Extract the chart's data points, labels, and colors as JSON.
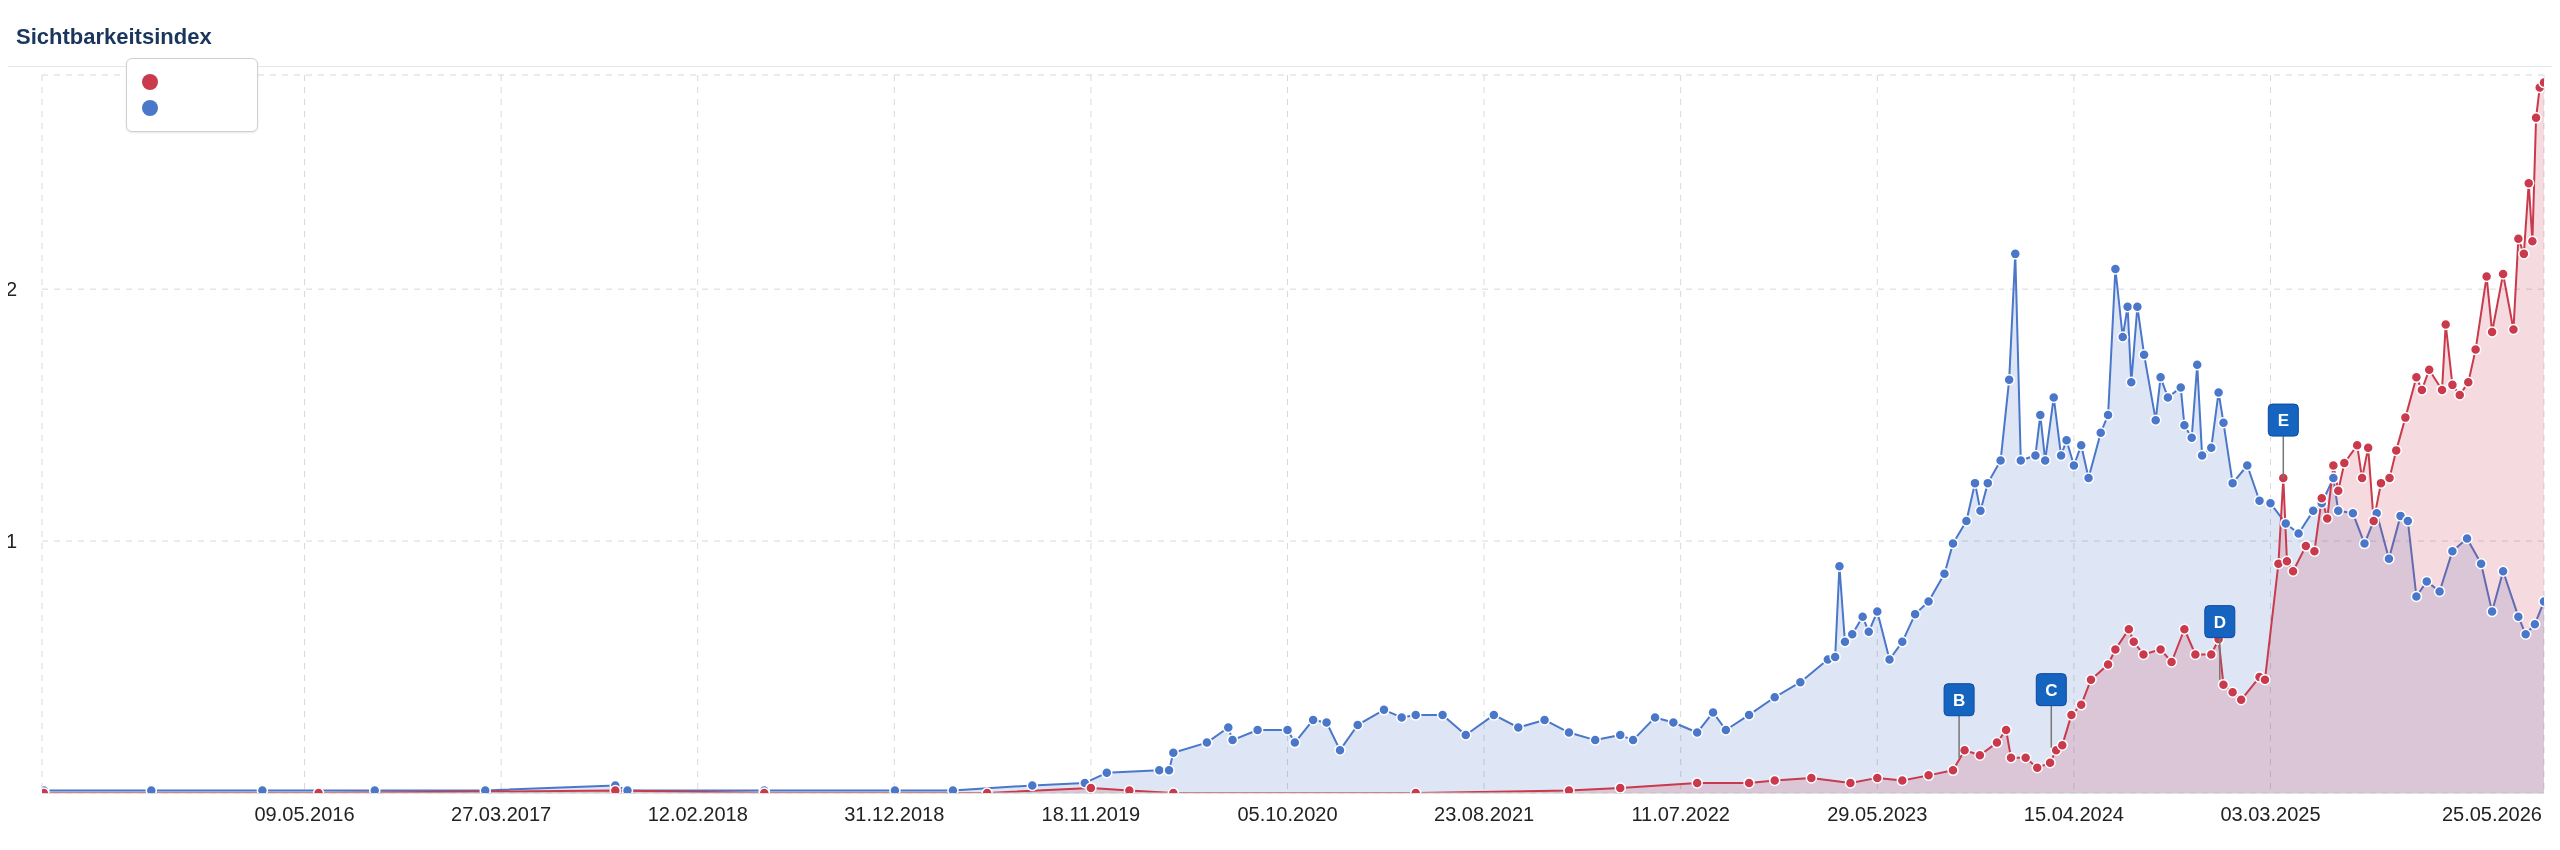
{
  "chart_data": {
    "type": "area",
    "title": "Sichtbarkeitsindex",
    "xlim": [
      "2015-03-06",
      "2026-05-25"
    ],
    "xticks": [
      {
        "value": "2016-05-09",
        "label": "09.05.2016"
      },
      {
        "value": "2017-03-27",
        "label": "27.03.2017"
      },
      {
        "value": "2018-02-12",
        "label": "12.02.2018"
      },
      {
        "value": "2018-12-31",
        "label": "31.12.2018"
      },
      {
        "value": "2019-11-18",
        "label": "18.11.2019"
      },
      {
        "value": "2020-10-05",
        "label": "05.10.2020"
      },
      {
        "value": "2021-08-23",
        "label": "23.08.2021"
      },
      {
        "value": "2022-07-11",
        "label": "11.07.2022"
      },
      {
        "value": "2023-05-29",
        "label": "29.05.2023"
      },
      {
        "value": "2024-04-15",
        "label": "15.04.2024"
      },
      {
        "value": "2025-03-03",
        "label": "03.03.2025"
      },
      {
        "value": "2026-05-25",
        "label": "25.05.2026"
      }
    ],
    "ylim": [
      0,
      2.85
    ],
    "yticks": [
      1,
      2
    ],
    "grid": true,
    "marker": "circle",
    "line_style": "solid",
    "series": [
      {
        "color": "#c93a4d",
        "x": [
          "2015-03-09",
          "2016-06-01",
          "2017-09-30",
          "2018-06-01",
          "2019-06-01",
          "2019-11-18",
          "2020-01-20",
          "2020-04-01",
          "2021-05-03",
          "2022-01-09",
          "2022-04-03",
          "2022-08-07",
          "2022-10-31",
          "2022-12-12",
          "2023-02-10",
          "2023-04-15",
          "2023-05-29",
          "2023-07-09",
          "2023-08-21",
          "2023-09-30",
          "2023-10-19",
          "2023-11-13",
          "2023-12-11",
          "2023-12-26",
          "2024-01-03",
          "2024-01-27",
          "2024-02-15",
          "2024-03-07",
          "2024-03-17",
          "2024-03-27",
          "2024-04-11",
          "2024-04-27",
          "2024-05-13",
          "2024-06-10",
          "2024-06-22",
          "2024-07-14",
          "2024-07-22",
          "2024-08-07",
          "2024-09-04",
          "2024-09-22",
          "2024-10-13",
          "2024-10-31",
          "2024-11-26",
          "2024-12-08",
          "2024-12-16",
          "2024-12-31",
          "2025-01-14",
          "2025-02-13",
          "2025-02-22",
          "2025-03-16",
          "2025-03-24",
          "2025-03-30",
          "2025-04-09",
          "2025-04-30",
          "2025-05-14",
          "2025-05-26",
          "2025-06-04",
          "2025-06-14",
          "2025-06-22",
          "2025-07-02",
          "2025-07-23",
          "2025-07-31",
          "2025-08-10",
          "2025-08-19",
          "2025-08-31",
          "2025-09-14",
          "2025-09-25",
          "2025-10-10",
          "2025-10-28",
          "2025-11-06",
          "2025-11-18",
          "2025-12-09",
          "2025-12-15",
          "2025-12-26",
          "2026-01-07",
          "2026-01-21",
          "2026-02-02",
          "2026-02-20",
          "2026-03-01",
          "2026-03-19",
          "2026-04-05",
          "2026-04-13",
          "2026-04-22",
          "2026-04-30",
          "2026-05-06",
          "2026-05-12",
          "2026-05-18",
          "2026-05-25"
        ],
        "values": [
          0,
          0,
          0.01,
          0,
          0,
          0.02,
          0.01,
          0,
          0,
          0.01,
          0.02,
          0.04,
          0.04,
          0.05,
          0.06,
          0.04,
          0.06,
          0.05,
          0.07,
          0.09,
          0.17,
          0.15,
          0.2,
          0.25,
          0.14,
          0.14,
          0.1,
          0.12,
          0.17,
          0.19,
          0.31,
          0.35,
          0.45,
          0.51,
          0.57,
          0.65,
          0.6,
          0.55,
          0.57,
          0.52,
          0.65,
          0.55,
          0.55,
          0.61,
          0.43,
          0.4,
          0.37,
          0.46,
          0.45,
          0.91,
          1.25,
          0.92,
          0.88,
          0.98,
          0.96,
          1.17,
          1.09,
          1.3,
          1.2,
          1.31,
          1.38,
          1.25,
          1.37,
          1.08,
          1.23,
          1.25,
          1.36,
          1.49,
          1.65,
          1.6,
          1.68,
          1.6,
          1.86,
          1.62,
          1.58,
          1.63,
          1.76,
          2.05,
          1.83,
          2.06,
          1.84,
          2.2,
          2.14,
          2.42,
          2.19,
          2.68,
          2.8,
          2.82
        ]
      },
      {
        "color": "#4a77c9",
        "x": [
          "2015-03-09",
          "2015-09-01",
          "2016-03-01",
          "2016-09-01",
          "2017-03-01",
          "2017-09-30",
          "2017-10-20",
          "2018-06-01",
          "2019-01-01",
          "2019-04-06",
          "2019-08-14",
          "2019-11-08",
          "2019-12-14",
          "2020-03-09",
          "2020-03-25",
          "2020-04-01",
          "2020-05-26",
          "2020-06-30",
          "2020-07-07",
          "2020-08-17",
          "2020-10-05",
          "2020-10-17",
          "2020-11-16",
          "2020-12-08",
          "2020-12-30",
          "2021-01-28",
          "2021-03-12",
          "2021-04-10",
          "2021-05-03",
          "2021-06-16",
          "2021-07-24",
          "2021-09-08",
          "2021-10-18",
          "2021-11-30",
          "2022-01-09",
          "2022-02-21",
          "2022-04-03",
          "2022-04-24",
          "2022-05-30",
          "2022-06-29",
          "2022-08-07",
          "2022-09-02",
          "2022-09-23",
          "2022-10-31",
          "2022-12-12",
          "2023-01-23",
          "2023-03-09",
          "2023-03-21",
          "2023-03-28",
          "2023-04-06",
          "2023-04-18",
          "2023-05-05",
          "2023-05-15",
          "2023-05-29",
          "2023-06-18",
          "2023-07-09",
          "2023-07-30",
          "2023-08-21",
          "2023-09-16",
          "2023-09-30",
          "2023-10-22",
          "2023-11-05",
          "2023-11-14",
          "2023-11-26",
          "2023-12-17",
          "2023-12-31",
          "2024-01-10",
          "2024-01-19",
          "2024-02-12",
          "2024-02-20",
          "2024-02-28",
          "2024-03-13",
          "2024-03-25",
          "2024-04-03",
          "2024-04-15",
          "2024-04-27",
          "2024-05-09",
          "2024-05-29",
          "2024-06-10",
          "2024-06-22",
          "2024-07-04",
          "2024-07-12",
          "2024-07-18",
          "2024-07-28",
          "2024-08-08",
          "2024-08-27",
          "2024-09-04",
          "2024-09-16",
          "2024-10-07",
          "2024-10-13",
          "2024-10-25",
          "2024-11-03",
          "2024-11-11",
          "2024-11-26",
          "2024-12-08",
          "2024-12-16",
          "2024-12-31",
          "2025-01-24",
          "2025-02-13",
          "2025-03-03",
          "2025-03-28",
          "2025-04-18",
          "2025-05-12",
          "2025-05-26",
          "2025-06-14",
          "2025-06-22",
          "2025-07-16",
          "2025-08-04",
          "2025-08-24",
          "2025-09-13",
          "2025-10-02",
          "2025-10-14",
          "2025-10-28",
          "2025-11-14",
          "2025-12-05",
          "2025-12-26",
          "2026-01-19",
          "2026-02-11",
          "2026-03-01",
          "2026-03-19",
          "2026-04-13",
          "2026-04-25",
          "2026-05-10",
          "2026-05-25"
        ],
        "values": [
          0.01,
          0.01,
          0.01,
          0.01,
          0.01,
          0.03,
          0.01,
          0.01,
          0.01,
          0.01,
          0.03,
          0.04,
          0.08,
          0.09,
          0.09,
          0.16,
          0.2,
          0.26,
          0.21,
          0.25,
          0.25,
          0.2,
          0.29,
          0.28,
          0.17,
          0.27,
          0.33,
          0.3,
          0.31,
          0.31,
          0.23,
          0.31,
          0.26,
          0.29,
          0.24,
          0.21,
          0.23,
          0.21,
          0.3,
          0.28,
          0.24,
          0.32,
          0.25,
          0.31,
          0.38,
          0.44,
          0.53,
          0.54,
          0.9,
          0.6,
          0.63,
          0.7,
          0.64,
          0.72,
          0.53,
          0.6,
          0.71,
          0.76,
          0.87,
          0.99,
          1.08,
          1.23,
          1.12,
          1.23,
          1.32,
          1.64,
          2.14,
          1.32,
          1.34,
          1.5,
          1.32,
          1.57,
          1.34,
          1.4,
          1.3,
          1.38,
          1.25,
          1.43,
          1.5,
          2.08,
          1.81,
          1.93,
          1.63,
          1.93,
          1.74,
          1.48,
          1.65,
          1.57,
          1.61,
          1.46,
          1.41,
          1.7,
          1.34,
          1.37,
          1.59,
          1.47,
          1.23,
          1.3,
          1.16,
          1.15,
          1.07,
          1.03,
          1.12,
          1.15,
          1.25,
          1.12,
          1.11,
          0.99,
          1.11,
          0.93,
          1.1,
          1.08,
          0.78,
          0.84,
          0.8,
          0.96,
          1.01,
          0.91,
          0.72,
          0.88,
          0.7,
          0.63,
          0.67,
          0.76
        ]
      }
    ],
    "annotations": [
      {
        "text": "B",
        "x": "2023-10-10",
        "y": 0.14
      },
      {
        "text": "C",
        "x": "2024-03-09",
        "y": 0.18
      },
      {
        "text": "D",
        "x": "2024-12-10",
        "y": 0.45
      },
      {
        "text": "E",
        "x": "2025-03-24",
        "y": 1.25
      }
    ]
  }
}
